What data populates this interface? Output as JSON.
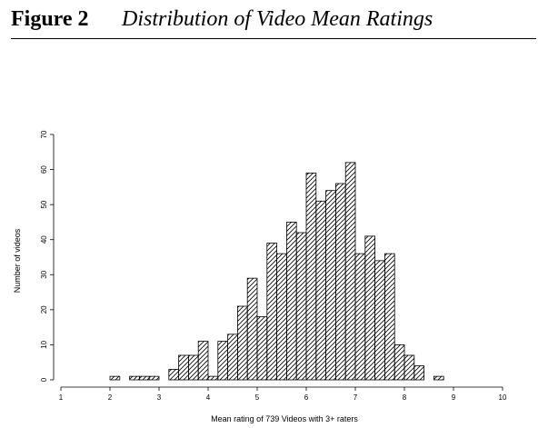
{
  "figure": {
    "label": "Figure 2",
    "title": "Distribution of Video Mean Ratings"
  },
  "chart_data": {
    "type": "bar",
    "title": "",
    "xlabel": "Mean rating of 739 Videos with 3+ raters",
    "ylabel": "Number of videos",
    "xlim": [
      1,
      10
    ],
    "ylim": [
      0,
      70
    ],
    "xticks": [
      "1",
      "2",
      "3",
      "4",
      "5",
      "6",
      "7",
      "8",
      "9",
      "10"
    ],
    "yticks": [
      "0",
      "10",
      "20",
      "30",
      "40",
      "50",
      "60",
      "70"
    ],
    "bin_width": 0.2,
    "bins": [
      {
        "x": 2.0,
        "value": 1
      },
      {
        "x": 2.4,
        "value": 1
      },
      {
        "x": 2.6,
        "value": 1
      },
      {
        "x": 2.8,
        "value": 1
      },
      {
        "x": 3.2,
        "value": 3
      },
      {
        "x": 3.4,
        "value": 7
      },
      {
        "x": 3.6,
        "value": 7
      },
      {
        "x": 3.8,
        "value": 11
      },
      {
        "x": 4.0,
        "value": 1
      },
      {
        "x": 4.2,
        "value": 11
      },
      {
        "x": 4.4,
        "value": 13
      },
      {
        "x": 4.6,
        "value": 21
      },
      {
        "x": 4.8,
        "value": 29
      },
      {
        "x": 5.0,
        "value": 18
      },
      {
        "x": 5.2,
        "value": 39
      },
      {
        "x": 5.4,
        "value": 36
      },
      {
        "x": 5.6,
        "value": 45
      },
      {
        "x": 5.8,
        "value": 42
      },
      {
        "x": 6.0,
        "value": 59
      },
      {
        "x": 6.2,
        "value": 51
      },
      {
        "x": 6.4,
        "value": 54
      },
      {
        "x": 6.6,
        "value": 56
      },
      {
        "x": 6.8,
        "value": 62
      },
      {
        "x": 7.0,
        "value": 36
      },
      {
        "x": 7.2,
        "value": 41
      },
      {
        "x": 7.4,
        "value": 34
      },
      {
        "x": 7.6,
        "value": 36
      },
      {
        "x": 7.8,
        "value": 10
      },
      {
        "x": 8.0,
        "value": 7
      },
      {
        "x": 8.2,
        "value": 4
      },
      {
        "x": 8.6,
        "value": 1
      }
    ],
    "fill": "diagonal hatching",
    "bar_color": "#000000",
    "grid": false,
    "legend": "none"
  }
}
